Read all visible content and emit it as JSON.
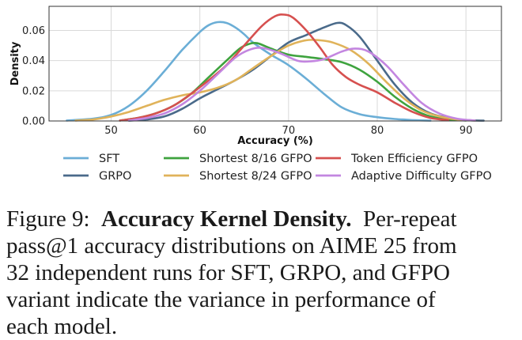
{
  "chart_data": {
    "type": "line",
    "xlabel": "Accuracy (%)",
    "ylabel": "Density",
    "xlim": [
      43,
      94
    ],
    "ylim": [
      0,
      0.076
    ],
    "xticks": [
      50,
      60,
      70,
      80,
      90
    ],
    "yticks": [
      0.0,
      0.02,
      0.04,
      0.06
    ],
    "ytick_labels": [
      "0.00",
      "0.02",
      "0.04",
      "0.06"
    ],
    "grid": true,
    "legend_position": "below",
    "series": [
      {
        "name": "SFT",
        "color": "#6baed6",
        "points": [
          [
            45,
            0.0003
          ],
          [
            48,
            0.0015
          ],
          [
            50,
            0.004
          ],
          [
            52,
            0.01
          ],
          [
            54,
            0.02
          ],
          [
            56,
            0.033
          ],
          [
            58,
            0.047
          ],
          [
            60,
            0.059
          ],
          [
            61,
            0.0635
          ],
          [
            62,
            0.0655
          ],
          [
            63,
            0.065
          ],
          [
            64,
            0.062
          ],
          [
            65,
            0.0575
          ],
          [
            66,
            0.052
          ],
          [
            68,
            0.044
          ],
          [
            70,
            0.037
          ],
          [
            72,
            0.028
          ],
          [
            74,
            0.018
          ],
          [
            76,
            0.009
          ],
          [
            78,
            0.0045
          ],
          [
            80,
            0.0025
          ],
          [
            82,
            0.0013
          ],
          [
            84,
            0.0006
          ],
          [
            86,
            0.0002
          ]
        ]
      },
      {
        "name": "GRPO",
        "color": "#4a6a8a",
        "points": [
          [
            52,
            0.0002
          ],
          [
            54,
            0.001
          ],
          [
            56,
            0.003
          ],
          [
            58,
            0.008
          ],
          [
            60,
            0.015
          ],
          [
            62,
            0.021
          ],
          [
            64,
            0.027
          ],
          [
            66,
            0.034
          ],
          [
            68,
            0.043
          ],
          [
            70,
            0.052
          ],
          [
            72,
            0.057
          ],
          [
            74,
            0.062
          ],
          [
            75.5,
            0.065
          ],
          [
            76.5,
            0.0635
          ],
          [
            78,
            0.056
          ],
          [
            80,
            0.04
          ],
          [
            82,
            0.024
          ],
          [
            84,
            0.012
          ],
          [
            86,
            0.005
          ],
          [
            88,
            0.002
          ],
          [
            90,
            0.0006
          ],
          [
            92,
            0.0002
          ]
        ]
      },
      {
        "name": "Shortest 8/16 GFPO",
        "color": "#3ea33e",
        "points": [
          [
            51,
            0.0003
          ],
          [
            53,
            0.002
          ],
          [
            55,
            0.005
          ],
          [
            57,
            0.01
          ],
          [
            59,
            0.018
          ],
          [
            61,
            0.029
          ],
          [
            63,
            0.04
          ],
          [
            64.5,
            0.048
          ],
          [
            65.5,
            0.051
          ],
          [
            66.5,
            0.0515
          ],
          [
            68,
            0.048
          ],
          [
            70,
            0.044
          ],
          [
            72,
            0.0425
          ],
          [
            74,
            0.041
          ],
          [
            76,
            0.039
          ],
          [
            78,
            0.034
          ],
          [
            80,
            0.026
          ],
          [
            82,
            0.016
          ],
          [
            84,
            0.008
          ],
          [
            86,
            0.003
          ],
          [
            88,
            0.001
          ],
          [
            90,
            0.0003
          ]
        ]
      },
      {
        "name": "Shortest 8/24 GFPO",
        "color": "#e0b35a",
        "points": [
          [
            46,
            0.0003
          ],
          [
            48,
            0.001
          ],
          [
            50,
            0.003
          ],
          [
            52,
            0.006
          ],
          [
            54,
            0.01
          ],
          [
            56,
            0.014
          ],
          [
            58,
            0.017
          ],
          [
            60,
            0.019
          ],
          [
            62,
            0.022
          ],
          [
            64,
            0.027
          ],
          [
            66,
            0.035
          ],
          [
            68,
            0.043
          ],
          [
            70,
            0.05
          ],
          [
            72,
            0.0535
          ],
          [
            73.5,
            0.0535
          ],
          [
            75,
            0.052
          ],
          [
            77,
            0.047
          ],
          [
            79,
            0.038
          ],
          [
            81,
            0.026
          ],
          [
            83,
            0.015
          ],
          [
            85,
            0.007
          ],
          [
            87,
            0.003
          ],
          [
            89,
            0.001
          ],
          [
            91,
            0.0003
          ]
        ]
      },
      {
        "name": "Token Efficiency GFPO",
        "color": "#d6504f",
        "points": [
          [
            51,
            0.0003
          ],
          [
            53,
            0.002
          ],
          [
            55,
            0.005
          ],
          [
            57,
            0.01
          ],
          [
            59,
            0.018
          ],
          [
            61,
            0.027
          ],
          [
            63,
            0.037
          ],
          [
            65,
            0.05
          ],
          [
            67,
            0.063
          ],
          [
            68.5,
            0.0695
          ],
          [
            69.5,
            0.0705
          ],
          [
            70.5,
            0.0685
          ],
          [
            72,
            0.06
          ],
          [
            73.5,
            0.049
          ],
          [
            75,
            0.037
          ],
          [
            76.5,
            0.029
          ],
          [
            78,
            0.024
          ],
          [
            80,
            0.019
          ],
          [
            82,
            0.012
          ],
          [
            84,
            0.006
          ],
          [
            86,
            0.002
          ],
          [
            88,
            0.0006
          ]
        ]
      },
      {
        "name": "Adaptive Difficulty GFPO",
        "color": "#c386e0",
        "points": [
          [
            52,
            0.0003
          ],
          [
            54,
            0.002
          ],
          [
            56,
            0.005
          ],
          [
            58,
            0.011
          ],
          [
            60,
            0.02
          ],
          [
            62,
            0.031
          ],
          [
            64,
            0.042
          ],
          [
            65.5,
            0.047
          ],
          [
            67,
            0.0485
          ],
          [
            69,
            0.045
          ],
          [
            71,
            0.04
          ],
          [
            72.5,
            0.0395
          ],
          [
            74,
            0.041
          ],
          [
            76,
            0.046
          ],
          [
            77.5,
            0.048
          ],
          [
            79,
            0.046
          ],
          [
            81,
            0.037
          ],
          [
            83,
            0.024
          ],
          [
            85,
            0.012
          ],
          [
            87,
            0.005
          ],
          [
            89,
            0.0015
          ],
          [
            91,
            0.0003
          ]
        ]
      }
    ]
  },
  "caption": {
    "prefix": "Figure 9:",
    "bold": "Accuracy Kernel Density.",
    "line1_rest": "Per-repeat",
    "line2": "pass@1 accuracy distributions on AIME 25 from",
    "line3": "32 independent runs for SFT, GRPO, and GFPO",
    "line4": "variant indicate the variance in performance of",
    "line5": "each model."
  }
}
